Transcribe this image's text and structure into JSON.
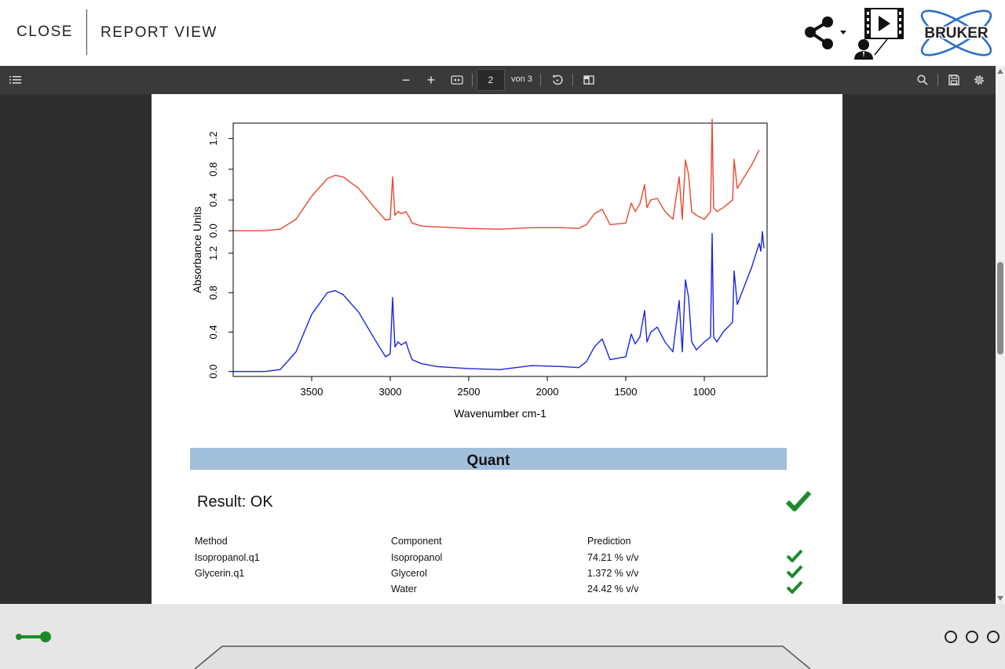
{
  "header": {
    "close_label": "CLOSE",
    "title": "REPORT VIEW",
    "share_icon": "share-icon",
    "video_icon": "video-tutorial-icon",
    "logo_text": "BRUKER"
  },
  "toolbar": {
    "outline_icon": "outline-icon",
    "zoom_out": "−",
    "zoom_in": "+",
    "fit_icon": "fit-width-icon",
    "page_value": "2",
    "page_of": "von 3",
    "rotate_icon": "rotate-icon",
    "view_icon": "page-view-icon",
    "search_icon": "search-icon",
    "save_icon": "save-icon",
    "settings_icon": "gear-icon"
  },
  "chart_data": {
    "type": "line",
    "title": "",
    "xlabel": "Wavenumber cm-1",
    "ylabel": "Absorbance Units",
    "xlim": [
      4000,
      600
    ],
    "x_ticks": [
      "3500",
      "3000",
      "2500",
      "2000",
      "1500",
      "1000"
    ],
    "y_ticks": [
      "0.0",
      "0.4",
      "0.8",
      "1.2"
    ],
    "panels": [
      {
        "color": "#e8472f",
        "ylim": [
          -0.1,
          1.4
        ],
        "x": [
          4000,
          3800,
          3700,
          3600,
          3500,
          3400,
          3350,
          3300,
          3200,
          3100,
          3030,
          3000,
          2985,
          2970,
          2950,
          2930,
          2900,
          2880,
          2860,
          2800,
          2700,
          2500,
          2300,
          2100,
          1900,
          1800,
          1750,
          1700,
          1650,
          1600,
          1500,
          1465,
          1440,
          1410,
          1380,
          1365,
          1340,
          1300,
          1250,
          1200,
          1160,
          1140,
          1120,
          1100,
          1080,
          1050,
          1000,
          960,
          950,
          940,
          920,
          880,
          820,
          810,
          790,
          700,
          650
        ],
        "y": [
          0,
          0,
          0.02,
          0.15,
          0.45,
          0.68,
          0.72,
          0.7,
          0.55,
          0.3,
          0.14,
          0.15,
          0.7,
          0.2,
          0.25,
          0.22,
          0.25,
          0.18,
          0.1,
          0.06,
          0.05,
          0.03,
          0.02,
          0.04,
          0.04,
          0.03,
          0.08,
          0.22,
          0.28,
          0.08,
          0.1,
          0.36,
          0.25,
          0.35,
          0.6,
          0.3,
          0.4,
          0.42,
          0.25,
          0.15,
          0.7,
          0.15,
          0.92,
          0.73,
          0.25,
          0.2,
          0.15,
          0.25,
          1.45,
          0.3,
          0.25,
          0.3,
          0.4,
          0.93,
          0.55,
          0.85,
          1.05
        ]
      },
      {
        "color": "#1c24e0",
        "ylim": [
          -0.05,
          1.35
        ],
        "x": [
          4000,
          3800,
          3700,
          3600,
          3500,
          3400,
          3350,
          3300,
          3200,
          3100,
          3030,
          3000,
          2985,
          2970,
          2950,
          2930,
          2900,
          2880,
          2860,
          2800,
          2700,
          2500,
          2300,
          2100,
          1900,
          1800,
          1750,
          1700,
          1650,
          1600,
          1500,
          1465,
          1440,
          1410,
          1380,
          1365,
          1340,
          1300,
          1250,
          1200,
          1160,
          1140,
          1120,
          1100,
          1080,
          1050,
          1000,
          960,
          950,
          940,
          920,
          880,
          820,
          810,
          790,
          700,
          650,
          640,
          630,
          620
        ],
        "y": [
          0,
          0,
          0.02,
          0.2,
          0.58,
          0.8,
          0.82,
          0.78,
          0.6,
          0.33,
          0.15,
          0.18,
          0.75,
          0.25,
          0.3,
          0.27,
          0.3,
          0.2,
          0.12,
          0.08,
          0.05,
          0.03,
          0.02,
          0.06,
          0.05,
          0.04,
          0.1,
          0.25,
          0.33,
          0.12,
          0.15,
          0.38,
          0.28,
          0.35,
          0.62,
          0.3,
          0.4,
          0.45,
          0.3,
          0.2,
          0.72,
          0.2,
          0.93,
          0.75,
          0.3,
          0.22,
          0.3,
          0.35,
          1.4,
          0.35,
          0.3,
          0.4,
          0.5,
          1.02,
          0.68,
          1.05,
          1.3,
          1.22,
          1.42,
          1.25
        ]
      }
    ]
  },
  "quant": {
    "heading": "Quant",
    "result": "Result: OK",
    "ok_color": "#1e8a2a",
    "columns": [
      "Method",
      "Component",
      "Prediction"
    ],
    "rows": [
      {
        "method": "Isopropanol.q1",
        "component": "Isopropanol",
        "prediction": "74.21 % v/v"
      },
      {
        "method": "Glycerin.q1",
        "component": "Glycerol",
        "prediction": "1.372 % v/v"
      },
      {
        "method": "",
        "component": "Water",
        "prediction": "24.42 % v/v"
      }
    ]
  },
  "bottom": {
    "connection_icon": "connection-icon",
    "menu_icon": "more-dots-icon"
  }
}
